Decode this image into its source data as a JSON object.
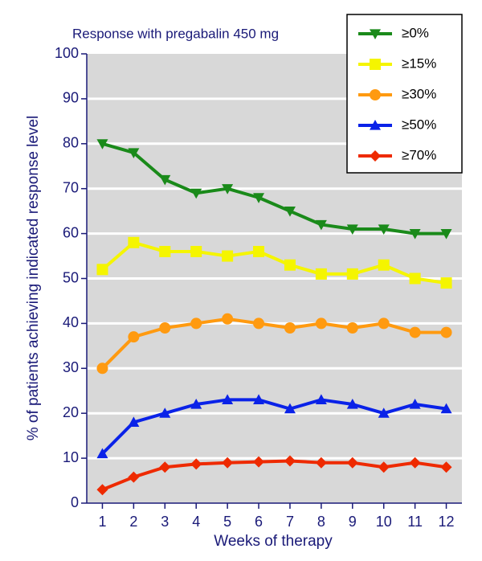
{
  "chart_data": {
    "type": "line",
    "title": "Response with pregabalin 450 mg",
    "x_label": "Weeks of therapy",
    "y_label": "% of patients achieving indicated response level",
    "x": [
      1,
      2,
      3,
      4,
      5,
      6,
      7,
      8,
      9,
      10,
      11,
      12
    ],
    "xlim": [
      0.5,
      12.5
    ],
    "xticks": [
      1,
      2,
      3,
      4,
      5,
      6,
      7,
      8,
      9,
      10,
      11,
      12
    ],
    "ylim": [
      0,
      100
    ],
    "yticks": [
      0,
      10,
      20,
      30,
      40,
      50,
      60,
      70,
      80,
      90,
      100
    ],
    "grid": true,
    "legend": "upper right",
    "series": [
      {
        "name": "≥0%",
        "color": "#1a8a1a",
        "marker": "triangle-down",
        "values": [
          80,
          78,
          72,
          69,
          70,
          68,
          65,
          62,
          61,
          61,
          60,
          60
        ]
      },
      {
        "name": "≥15%",
        "color": "#f5f500",
        "marker": "square",
        "values": [
          52,
          58,
          56,
          56,
          55,
          56,
          53,
          51,
          51,
          53,
          50,
          49
        ]
      },
      {
        "name": "≥30%",
        "color": "#ff9a10",
        "marker": "circle",
        "values": [
          30,
          37,
          39,
          40,
          41,
          40,
          39,
          40,
          39,
          40,
          38,
          38
        ]
      },
      {
        "name": "≥50%",
        "color": "#0a22e8",
        "marker": "triangle-up",
        "values": [
          11,
          18,
          20,
          22,
          23,
          23,
          21,
          23,
          22,
          20,
          22,
          21
        ]
      },
      {
        "name": "≥70%",
        "color": "#ee2a00",
        "marker": "diamond",
        "values": [
          3,
          5.8,
          8,
          8.7,
          9,
          9.2,
          9.4,
          9,
          9,
          8,
          9,
          8
        ]
      }
    ]
  }
}
